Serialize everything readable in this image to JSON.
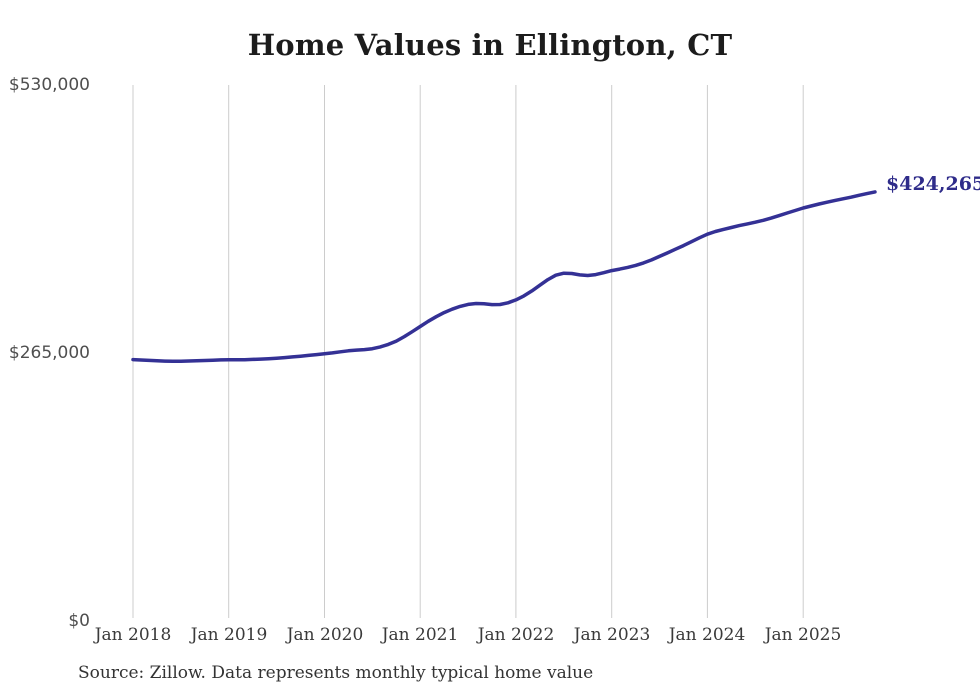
{
  "page": {
    "background_color": "#ffffff"
  },
  "chart_data": {
    "type": "line",
    "title": "Home Values in Ellington, CT",
    "source_note": "Source: Zillow. Data represents monthly typical home value",
    "series": [
      {
        "name": "Typical home value",
        "frequency": "monthly",
        "x_start": "Jan 2018",
        "x_end": "Oct 2025",
        "values": [
          258500,
          258100,
          257700,
          257300,
          257000,
          256800,
          256900,
          257100,
          257400,
          257600,
          257900,
          258200,
          258400,
          258300,
          258400,
          258700,
          259000,
          259400,
          259900,
          260500,
          261100,
          261800,
          262600,
          263400,
          264200,
          265100,
          266200,
          267200,
          267900,
          268400,
          269300,
          271000,
          273500,
          276800,
          281200,
          286100,
          291200,
          296300,
          300900,
          304900,
          308300,
          311100,
          313100,
          313900,
          313600,
          312900,
          313000,
          314600,
          317500,
          321500,
          326400,
          332000,
          337600,
          341900,
          343900,
          343600,
          342200,
          341600,
          342500,
          344400,
          346500,
          348000,
          349600,
          351600,
          354100,
          357100,
          360500,
          364000,
          367600,
          371200,
          375100,
          378900,
          382500,
          385100,
          387200,
          389100,
          391000,
          392700,
          394300,
          396200,
          398400,
          400900,
          403400,
          405900,
          408400,
          410400,
          412300,
          414100,
          415900,
          417500,
          419100,
          420900,
          422600,
          424265
        ]
      }
    ],
    "last_value": 424265,
    "last_value_label": "$424,265",
    "x_tick_labels": [
      "Jan 2018",
      "Jan 2019",
      "Jan 2020",
      "Jan 2021",
      "Jan 2022",
      "Jan 2023",
      "Jan 2024",
      "Jan 2025"
    ],
    "y_tick_labels": [
      "$530,000",
      "$265,000",
      "$0"
    ],
    "y_ticks": [
      530000,
      265000,
      0
    ],
    "ylim": [
      0,
      530000
    ],
    "grid": "vertical-only",
    "legend": "none",
    "colors": {
      "line": "#343195",
      "last_value_label": "#2f2c8a",
      "gridline": "#cccccc",
      "title_text": "#1c1c1c",
      "axis_text": "#4f4f4f"
    }
  }
}
